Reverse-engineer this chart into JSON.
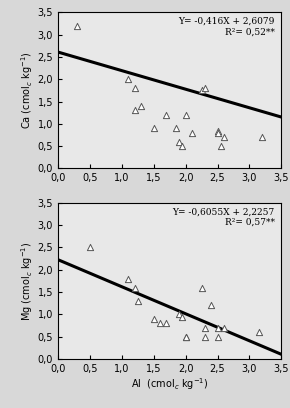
{
  "ca_x": [
    0.3,
    1.1,
    1.2,
    1.2,
    1.3,
    1.5,
    1.7,
    1.85,
    1.9,
    1.95,
    2.0,
    2.1,
    2.25,
    2.3,
    2.5,
    2.5,
    2.55,
    2.6,
    3.2
  ],
  "ca_y": [
    3.2,
    2.0,
    1.8,
    1.3,
    1.4,
    0.9,
    1.2,
    0.9,
    0.6,
    0.5,
    1.2,
    0.8,
    1.75,
    1.8,
    0.85,
    0.8,
    0.5,
    0.7,
    0.7
  ],
  "mg_x": [
    0.5,
    1.1,
    1.2,
    1.25,
    1.5,
    1.6,
    1.7,
    1.9,
    1.95,
    2.0,
    2.0,
    2.25,
    2.3,
    2.3,
    2.4,
    2.5,
    2.5,
    2.6,
    3.15
  ],
  "mg_y": [
    2.5,
    1.8,
    1.6,
    1.3,
    0.9,
    0.8,
    0.8,
    1.0,
    0.95,
    0.5,
    0.5,
    1.6,
    0.7,
    0.5,
    1.2,
    0.7,
    0.5,
    0.7,
    0.6
  ],
  "ca_slope": -0.416,
  "ca_intercept": 2.6079,
  "ca_eq": "Y= -0,416X + 2,6079",
  "ca_r2": "R²= 0,52**",
  "mg_slope": -0.6055,
  "mg_intercept": 2.2257,
  "mg_eq": "Y= -0,6055X + 2,2257",
  "mg_r2": "R²= 0,57**",
  "xlabel": "Al  (cmol$_{c}$ kg$^{-1}$)",
  "ca_ylabel": "Ca (cmol$_{c}$ kg$^{-1}$)",
  "mg_ylabel": "Mg (cmol$_{c}$ kg$^{-1}$)",
  "xlim": [
    0.0,
    3.5
  ],
  "ylim": [
    0.0,
    3.5
  ],
  "xticks": [
    0.0,
    0.5,
    1.0,
    1.5,
    2.0,
    2.5,
    3.0,
    3.5
  ],
  "yticks": [
    0.0,
    0.5,
    1.0,
    1.5,
    2.0,
    2.5,
    3.0,
    3.5
  ],
  "marker_color": "white",
  "marker_edge_color": "#555555",
  "line_color": "black",
  "line_width": 2.2,
  "marker_size": 20,
  "fontsize": 7,
  "eq_fontsize": 6.5,
  "bg_color": "#e8e8e8"
}
